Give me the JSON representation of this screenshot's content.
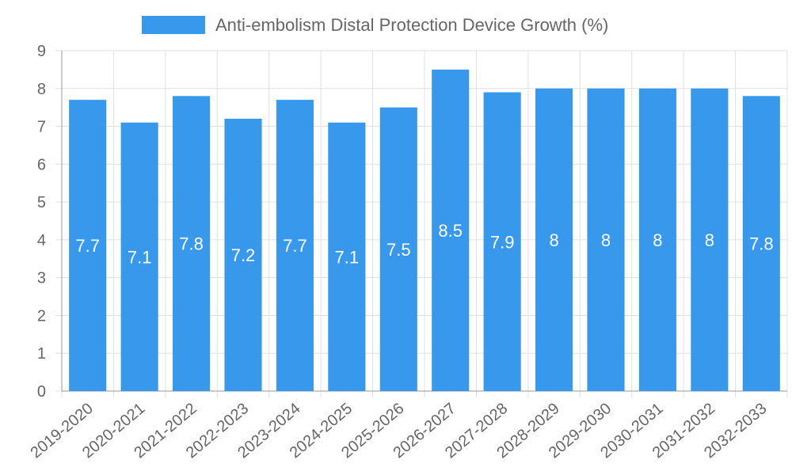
{
  "chart_data": {
    "type": "bar",
    "title": "",
    "xlabel": "",
    "ylabel": "",
    "ylim": [
      0,
      9
    ],
    "yticks": [
      0,
      1,
      2,
      3,
      4,
      5,
      6,
      7,
      8,
      9
    ],
    "grid": true,
    "legend_position": "top-center",
    "categories": [
      "2019-2020",
      "2020-2021",
      "2021-2022",
      "2022-2023",
      "2023-2024",
      "2024-2025",
      "2025-2026",
      "2026-2027",
      "2027-2028",
      "2028-2029",
      "2029-2030",
      "2030-2031",
      "2031-2032",
      "2032-2033"
    ],
    "series": [
      {
        "name": "Anti-embolism Distal Protection Device Growth (%)",
        "color": "#3899ec",
        "values": [
          7.7,
          7.1,
          7.8,
          7.2,
          7.7,
          7.1,
          7.5,
          8.5,
          7.9,
          8,
          8,
          8,
          8,
          7.8
        ],
        "labels": [
          "7.7",
          "7.1",
          "7.8",
          "7.2",
          "7.7",
          "7.1",
          "7.5",
          "8.5",
          "7.9",
          "8",
          "8",
          "8",
          "8",
          "7.8"
        ]
      }
    ]
  }
}
